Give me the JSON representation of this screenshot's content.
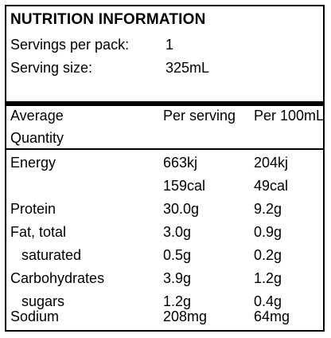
{
  "title": "NUTRITION INFORMATION",
  "servings_per_pack": {
    "label": "Servings per pack:",
    "value": "1"
  },
  "serving_size": {
    "label": "Serving size:",
    "value": "325mL"
  },
  "headers": {
    "quantity_line1": "Average",
    "quantity_line2": "Quantity",
    "per_serving": "Per serving",
    "per_100ml": "Per 100mL"
  },
  "rows": [
    {
      "name": "Energy",
      "per_serving": "663kj",
      "per_100ml": "204kj"
    },
    {
      "name": "",
      "per_serving": "159cal",
      "per_100ml": "49cal"
    },
    {
      "name": "Protein",
      "per_serving": "30.0g",
      "per_100ml": "9.2g"
    },
    {
      "name": "Fat, total",
      "per_serving": "3.0g",
      "per_100ml": "0.9g"
    },
    {
      "name": "saturated",
      "per_serving": "0.5g",
      "per_100ml": "0.2g"
    },
    {
      "name": "Carbohydrates",
      "per_serving": "3.9g",
      "per_100ml": "1.2g"
    },
    {
      "name": "sugars",
      "per_serving": "1.2g",
      "per_100ml": "0.4g"
    },
    {
      "name": "Sodium",
      "per_serving": "208mg",
      "per_100ml": "64mg"
    }
  ]
}
